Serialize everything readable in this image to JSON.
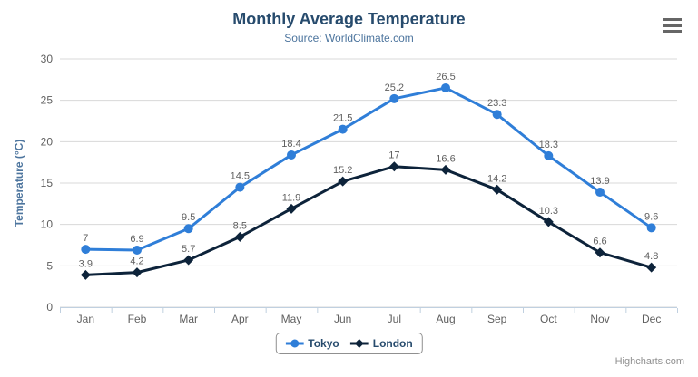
{
  "chart": {
    "title": "Monthly Average Temperature",
    "subtitle": "Source: WorldClimate.com",
    "credits": "Highcharts.com"
  },
  "icons": {
    "context_menu": "hamburger-icon"
  },
  "colors": {
    "title": "#274b6d",
    "subtitle": "#4d759e",
    "axis_title": "#4d759e",
    "axis_labels": "#606060",
    "data_labels": "#606060",
    "grid_line": "#d8d8d8",
    "axis_line": "#c0d0e0",
    "legend_text": "#274b6d",
    "legend_border": "#909090",
    "credits_text": "#909090",
    "menu_icon": "#666666",
    "tokyo": "#2f7ed8",
    "london": "#0d233a"
  },
  "chart_data": {
    "type": "line",
    "title": "Monthly Average Temperature",
    "subtitle": "Source: WorldClimate.com",
    "categories": [
      "Jan",
      "Feb",
      "Mar",
      "Apr",
      "May",
      "Jun",
      "Jul",
      "Aug",
      "Sep",
      "Oct",
      "Nov",
      "Dec"
    ],
    "series": [
      {
        "name": "Tokyo",
        "color": "#2f7ed8",
        "marker": "circle",
        "values": [
          7,
          6.9,
          9.5,
          14.5,
          18.4,
          21.5,
          25.2,
          26.5,
          23.3,
          18.3,
          13.9,
          9.6
        ]
      },
      {
        "name": "London",
        "color": "#0d233a",
        "marker": "diamond",
        "values": [
          3.9,
          4.2,
          5.7,
          8.5,
          11.9,
          15.2,
          17,
          16.6,
          14.2,
          10.3,
          6.6,
          4.8
        ]
      }
    ],
    "xlabel": "",
    "ylabel": "Temperature (°C)",
    "ylim": [
      0,
      30
    ],
    "yticks": [
      0,
      5,
      10,
      15,
      20,
      25,
      30
    ],
    "grid": true,
    "data_labels": true,
    "legend_position": "bottom"
  }
}
